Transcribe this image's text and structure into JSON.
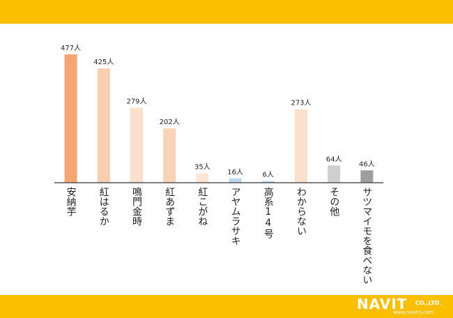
{
  "chart_data": {
    "type": "bar",
    "categories": [
      "安納芋",
      "紅はるか",
      "鳴門金時",
      "紅あずま",
      "紅こがね",
      "アヤムラサキ",
      "高系14号",
      "わからない",
      "その他",
      "サツマイモを食べない"
    ],
    "values": [
      477,
      425,
      279,
      202,
      35,
      16,
      6,
      273,
      64,
      46
    ],
    "data_labels": [
      "477人",
      "425人",
      "279人",
      "202人",
      "35人",
      "16人",
      "6人",
      "273人",
      "64人",
      "46人"
    ],
    "bar_colors": [
      "#f4a570",
      "#f9cfb0",
      "#fbe0cd",
      "#f9d3b8",
      "#fce6d6",
      "#bcd5ee",
      "#bcd5ee",
      "#fbe0cd",
      "#cfcfcf",
      "#9e9e9e"
    ],
    "ylim": [
      0,
      500
    ],
    "grid": false,
    "legend": "none",
    "title": "",
    "xlabel": "",
    "ylabel": ""
  },
  "brand": {
    "logo_text": "NAVIT",
    "company_suffix": "CO.,LTD.",
    "url": "www.navit-j.com"
  },
  "colors": {
    "band": "#fbbf00",
    "axis": "#555555"
  }
}
